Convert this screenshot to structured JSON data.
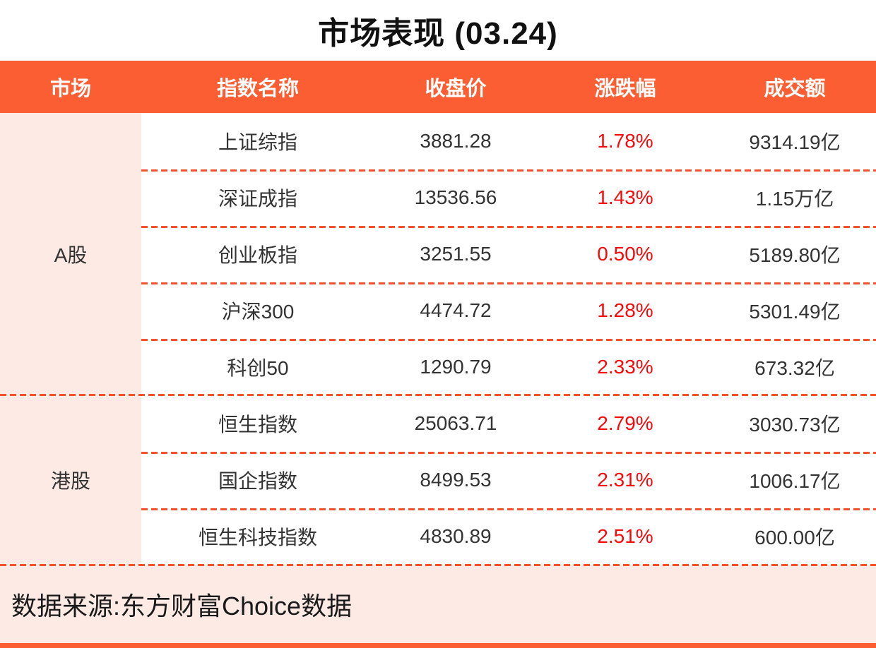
{
  "title": "市场表现 (03.24)",
  "table": {
    "headers": [
      "市场",
      "指数名称",
      "收盘价",
      "涨跌幅",
      "成交额"
    ],
    "groups": [
      {
        "market": "A股",
        "rows": [
          {
            "name": "上证综指",
            "close": "3881.28",
            "change": "1.78%",
            "turnover": "9314.19亿"
          },
          {
            "name": "深证成指",
            "close": "13536.56",
            "change": "1.43%",
            "turnover": "1.15万亿"
          },
          {
            "name": "创业板指",
            "close": "3251.55",
            "change": "0.50%",
            "turnover": "5189.80亿"
          },
          {
            "name": "沪深300",
            "close": "4474.72",
            "change": "1.28%",
            "turnover": "5301.49亿"
          },
          {
            "name": "科创50",
            "close": "1290.79",
            "change": "2.33%",
            "turnover": "673.32亿"
          }
        ]
      },
      {
        "market": "港股",
        "rows": [
          {
            "name": "恒生指数",
            "close": "25063.71",
            "change": "2.79%",
            "turnover": "3030.73亿"
          },
          {
            "name": "国企指数",
            "close": "8499.53",
            "change": "2.31%",
            "turnover": "1006.17亿"
          },
          {
            "name": "恒生科技指数",
            "close": "4830.89",
            "change": "2.51%",
            "turnover": "600.00亿"
          }
        ]
      }
    ]
  },
  "footer": {
    "source": "数据来源:东方财富Choice数据"
  },
  "colors": {
    "accent_orange": "#fb5e32",
    "light_pink": "#fdeae4",
    "dashed_line": "#f4512c",
    "up_red": "#f80909",
    "text_dark": "#333333"
  },
  "chart_data": {
    "type": "table",
    "title": "市场表现 (03.24)",
    "columns": [
      "市场",
      "指数名称",
      "收盘价",
      "涨跌幅",
      "成交额"
    ],
    "rows": [
      [
        "A股",
        "上证综指",
        3881.28,
        "1.78%",
        "9314.19亿"
      ],
      [
        "A股",
        "深证成指",
        13536.56,
        "1.43%",
        "1.15万亿"
      ],
      [
        "A股",
        "创业板指",
        3251.55,
        "0.50%",
        "5189.80亿"
      ],
      [
        "A股",
        "沪深300",
        4474.72,
        "1.28%",
        "5301.49亿"
      ],
      [
        "A股",
        "科创50",
        1290.79,
        "2.33%",
        "673.32亿"
      ],
      [
        "港股",
        "恒生指数",
        25063.71,
        "2.79%",
        "3030.73亿"
      ],
      [
        "港股",
        "国企指数",
        8499.53,
        "2.31%",
        "1006.17亿"
      ],
      [
        "港股",
        "恒生科技指数",
        4830.89,
        "2.51%",
        "600.00亿"
      ]
    ],
    "layout_hints": {
      "change_color": "red-for-gain",
      "group_column": "市场",
      "row_dividers": "orange-dashed"
    },
    "source": "数据来源:东方财富Choice数据"
  }
}
